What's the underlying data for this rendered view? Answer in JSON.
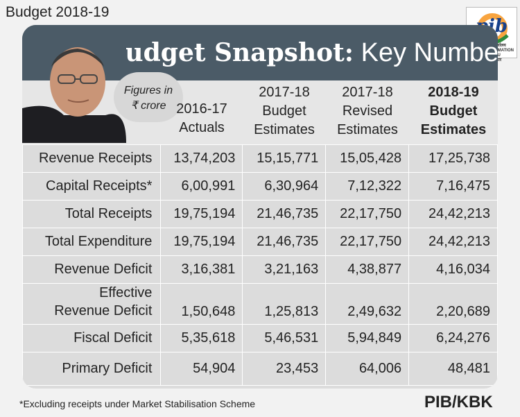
{
  "top_label": "Budget 2018-19",
  "logo": {
    "text": "pib",
    "sub1": "पत्र सूचना कार्यालय",
    "sub2": "PRESS INFORMATION BUREAU",
    "sub3": "भारत सरकार"
  },
  "banner": {
    "title_bold": "Budget Snapshot:",
    "title_rest": "Key Numbers"
  },
  "figures_note": {
    "line1": "Figures in",
    "line2": "₹ crore"
  },
  "columns": [
    {
      "line1": "2016-17",
      "line2": "Actuals",
      "line3": ""
    },
    {
      "line1": "2017-18",
      "line2": "Budget",
      "line3": "Estimates"
    },
    {
      "line1": "2017-18",
      "line2": "Revised",
      "line3": "Estimates"
    },
    {
      "line1": "2018-19",
      "line2": "Budget",
      "line3": "Estimates"
    }
  ],
  "rows": [
    {
      "label": "Revenue Receipts",
      "values": [
        "13,74,203",
        "15,15,771",
        "15,05,428",
        "17,25,738"
      ]
    },
    {
      "label": "Capital Receipts*",
      "values": [
        "6,00,991",
        "6,30,964",
        "7,12,322",
        "7,16,475"
      ]
    },
    {
      "label": "Total Receipts",
      "values": [
        "19,75,194",
        "21,46,735",
        "22,17,750",
        "24,42,213"
      ]
    },
    {
      "label": "Total Expenditure",
      "values": [
        "19,75,194",
        "21,46,735",
        "22,17,750",
        "24,42,213"
      ]
    },
    {
      "label": "Revenue Deficit",
      "values": [
        "3,16,381",
        "3,21,163",
        "4,38,877",
        "4,16,034"
      ]
    },
    {
      "label_line1": "Effective",
      "label_line2": "Revenue Deficit",
      "values": [
        "1,50,648",
        "1,25,813",
        "2,49,632",
        "2,20,689"
      ]
    },
    {
      "label": "Fiscal Deficit",
      "values": [
        "5,35,618",
        "5,46,531",
        "5,94,849",
        "6,24,276"
      ]
    },
    {
      "label": "Primary Deficit",
      "values": [
        "54,904",
        "23,453",
        "64,006",
        "48,481"
      ]
    }
  ],
  "footnote": "*Excluding receipts under Market Stabilisation Scheme",
  "credit": "PIB/KBK"
}
